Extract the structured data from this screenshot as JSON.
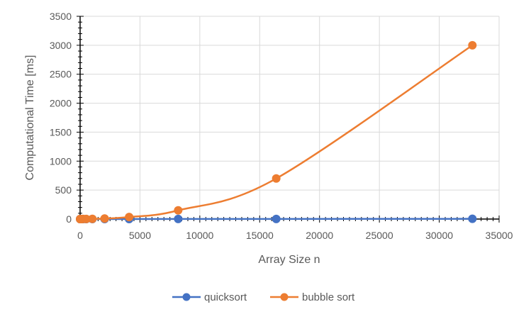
{
  "chart_data": {
    "type": "scatter",
    "title": "",
    "xlabel": "Array Size n",
    "ylabel": "Computational Time [ms]",
    "xlim": [
      0,
      35000
    ],
    "ylim": [
      0,
      3500
    ],
    "x_ticks": [
      0,
      5000,
      10000,
      15000,
      20000,
      25000,
      30000,
      35000
    ],
    "y_ticks": [
      0,
      500,
      1000,
      1500,
      2000,
      2500,
      3000,
      3500
    ],
    "grid": true,
    "smooth_lines": true,
    "legend_position": "bottom",
    "series": [
      {
        "name": "quicksort",
        "color": "#4472C4",
        "x": [
          2,
          4,
          8,
          16,
          32,
          64,
          128,
          256,
          512,
          1024,
          2048,
          4096,
          8192,
          16384,
          32768
        ],
        "y": [
          0,
          0,
          0,
          0,
          0,
          0,
          0,
          0,
          0,
          0,
          0,
          0,
          1,
          2,
          4
        ]
      },
      {
        "name": "bubble sort",
        "color": "#ED7D31",
        "x": [
          2,
          4,
          8,
          16,
          32,
          64,
          128,
          256,
          512,
          1024,
          2048,
          4096,
          8192,
          16384,
          32768
        ],
        "y": [
          0,
          0,
          0,
          0,
          0,
          0,
          0,
          1,
          2,
          3,
          9,
          35,
          150,
          700,
          3000
        ]
      }
    ]
  }
}
